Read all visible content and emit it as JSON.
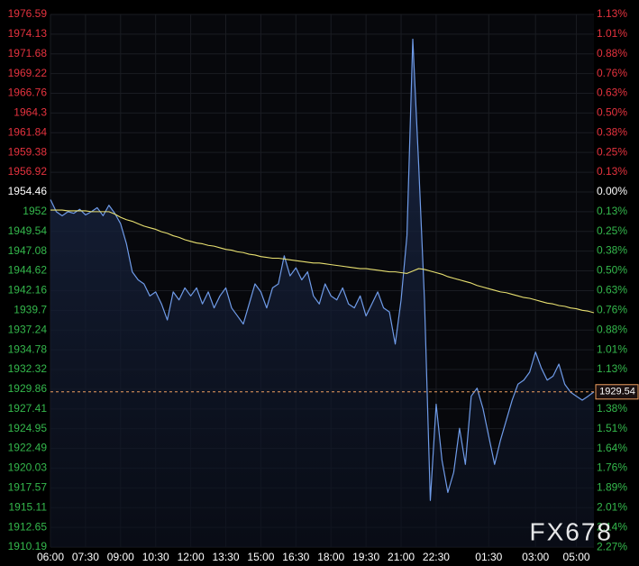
{
  "chart_data": {
    "type": "line",
    "categories": [
      "06:00",
      null,
      null,
      null,
      null,
      null,
      "07:30",
      null,
      null,
      null,
      null,
      null,
      "09:00",
      null,
      null,
      null,
      null,
      null,
      "10:30",
      null,
      null,
      null,
      null,
      null,
      "12:00",
      null,
      null,
      null,
      null,
      null,
      "13:30",
      null,
      null,
      null,
      null,
      null,
      "15:00",
      null,
      null,
      null,
      null,
      null,
      "16:30",
      null,
      null,
      null,
      null,
      null,
      "18:00",
      null,
      null,
      null,
      null,
      null,
      "19:30",
      null,
      null,
      null,
      null,
      null,
      "21:00",
      null,
      null,
      null,
      null,
      null,
      "22:30",
      null,
      null,
      null,
      null,
      null,
      null,
      null,
      null,
      "01:30",
      null,
      null,
      null,
      null,
      null,
      null,
      null,
      "03:00",
      null,
      null,
      null,
      null,
      null,
      null,
      "05:00",
      null,
      null,
      null
    ],
    "series": [
      {
        "color": "#6f9be8",
        "values": [
          1953.5,
          1952.0,
          1951.5,
          1952.0,
          1951.8,
          1952.3,
          1951.6,
          1952.0,
          1952.5,
          1951.5,
          1952.8,
          1951.8,
          1950.5,
          1948.0,
          1944.5,
          1943.5,
          1943.0,
          1941.5,
          1942.0,
          1940.5,
          1938.5,
          1942.0,
          1941.0,
          1942.5,
          1941.5,
          1942.5,
          1940.5,
          1942.0,
          1940.0,
          1941.5,
          1942.5,
          1940.0,
          1939.0,
          1938.0,
          1940.5,
          1943.0,
          1942.0,
          1940.0,
          1942.5,
          1943.0,
          1946.5,
          1944.0,
          1945.0,
          1943.5,
          1944.5,
          1941.5,
          1940.5,
          1943.0,
          1941.5,
          1941.0,
          1942.5,
          1940.5,
          1940.0,
          1941.5,
          1939.0,
          1940.5,
          1942.0,
          1940.0,
          1939.5,
          1935.5,
          1941.0,
          1949.0,
          1973.5,
          1958.0,
          1941.0,
          1916.0,
          1928.0,
          1921.0,
          1917.0,
          1919.5,
          1925.0,
          1920.5,
          1929.0,
          1930.0,
          1927.5,
          1924.0,
          1920.5,
          1923.5,
          1926.0,
          1928.5,
          1930.5,
          1931.0,
          1932.0,
          1934.5,
          1932.5,
          1931.0,
          1931.5,
          1933.0,
          1930.5,
          1929.5,
          1929.0,
          1928.5,
          1929.0,
          1929.54
        ]
      },
      {
        "color": "#e8e070",
        "values": [
          1952.2,
          1952.2,
          1952.2,
          1952.1,
          1952.1,
          1952.1,
          1952.1,
          1952.0,
          1952.0,
          1952.0,
          1952.0,
          1951.7,
          1951.3,
          1951.0,
          1950.8,
          1950.5,
          1950.2,
          1950.0,
          1949.8,
          1949.5,
          1949.3,
          1949.0,
          1948.8,
          1948.5,
          1948.3,
          1948.1,
          1948.0,
          1947.8,
          1947.7,
          1947.5,
          1947.3,
          1947.2,
          1947.0,
          1946.9,
          1946.7,
          1946.6,
          1946.4,
          1946.3,
          1946.2,
          1946.2,
          1946.1,
          1946.0,
          1945.9,
          1945.8,
          1945.7,
          1945.6,
          1945.6,
          1945.5,
          1945.4,
          1945.3,
          1945.2,
          1945.1,
          1945.0,
          1944.9,
          1944.9,
          1944.8,
          1944.7,
          1944.6,
          1944.5,
          1944.5,
          1944.4,
          1944.3,
          1944.6,
          1944.9,
          1944.8,
          1944.6,
          1944.4,
          1944.2,
          1943.9,
          1943.7,
          1943.5,
          1943.3,
          1943.1,
          1942.8,
          1942.6,
          1942.4,
          1942.2,
          1942.0,
          1941.9,
          1941.7,
          1941.5,
          1941.3,
          1941.2,
          1941.0,
          1940.8,
          1940.6,
          1940.5,
          1940.3,
          1940.2,
          1940.0,
          1939.9,
          1939.7,
          1939.6,
          1939.4
        ]
      }
    ],
    "ylim": [
      1910.19,
      1976.59
    ],
    "yticks": [
      1976.59,
      1974.13,
      1971.68,
      1969.22,
      1966.76,
      1964.3,
      1961.84,
      1959.38,
      1956.92,
      1954.46,
      1952.0,
      1949.54,
      1947.08,
      1944.62,
      1942.16,
      1939.7,
      1937.24,
      1934.78,
      1932.32,
      1929.86,
      1927.41,
      1924.95,
      1922.49,
      1920.03,
      1917.57,
      1915.11,
      1912.65,
      1910.19
    ],
    "y2lim": [
      -2.265,
      1.132
    ],
    "y2ticks": [
      {
        "value": 1.132,
        "label": "1.13%"
      },
      {
        "value": 1.006,
        "label": "1.01%"
      },
      {
        "value": 0.881,
        "label": "0.88%"
      },
      {
        "value": 0.755,
        "label": "0.76%"
      },
      {
        "value": 0.629,
        "label": "0.63%"
      },
      {
        "value": 0.503,
        "label": "0.50%"
      },
      {
        "value": 0.377,
        "label": "0.38%"
      },
      {
        "value": 0.252,
        "label": "0.25%"
      },
      {
        "value": 0.126,
        "label": "0.13%"
      },
      {
        "value": 0,
        "label": "0.00%"
      },
      {
        "value": -0.126,
        "label": "0.13%"
      },
      {
        "value": -0.252,
        "label": "0.25%"
      },
      {
        "value": -0.377,
        "label": "0.38%"
      },
      {
        "value": -0.503,
        "label": "0.50%"
      },
      {
        "value": -0.629,
        "label": "0.63%"
      },
      {
        "value": -0.755,
        "label": "0.76%"
      },
      {
        "value": -0.881,
        "label": "0.88%"
      },
      {
        "value": -1.007,
        "label": "1.01%"
      },
      {
        "value": -1.133,
        "label": "1.13%"
      },
      {
        "value": -1.259,
        "label": "1.26%"
      },
      {
        "value": -1.385,
        "label": "1.38%"
      },
      {
        "value": -1.511,
        "label": "1.51%"
      },
      {
        "value": -1.637,
        "label": "1.64%"
      },
      {
        "value": -1.762,
        "label": "1.76%"
      },
      {
        "value": -1.888,
        "label": "1.89%"
      },
      {
        "value": -2.014,
        "label": "2.01%"
      },
      {
        "value": -2.14,
        "label": "2.14%"
      },
      {
        "value": -2.266,
        "label": "2.27%"
      }
    ],
    "up_color": "#e5323e",
    "down_color": "#34b84c",
    "flat_color": "#ffffff",
    "grid": true,
    "current_price": 1929.54,
    "current_price_color": "#f0a060",
    "watermark": "FX678"
  }
}
